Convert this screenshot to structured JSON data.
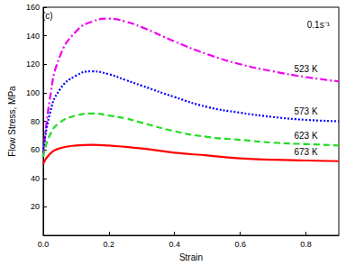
{
  "chart_data": {
    "type": "line",
    "x_label": "Strain",
    "y_label": "Flow Stress, MPa",
    "annotations": [
      "(c)",
      "0.1s⁻¹"
    ],
    "x": [
      0,
      0.02,
      0.05,
      0.1,
      0.15,
      0.2,
      0.25,
      0.3,
      0.4,
      0.5,
      0.6,
      0.7,
      0.8,
      0.9
    ],
    "series": [
      {
        "name": "523 K",
        "color": "#ee00ee",
        "line_style": "dashdot",
        "values": [
          55,
          95,
          125,
          143,
          150,
          152,
          150,
          146,
          136,
          127,
          120,
          115,
          111,
          108
        ]
      },
      {
        "name": "573 K",
        "color": "#0000ff",
        "line_style": "dotted",
        "values": [
          58,
          85,
          102,
          112,
          115,
          113,
          109,
          105,
          97,
          90,
          86,
          83,
          81,
          80
        ]
      },
      {
        "name": "623 K",
        "color": "#22dd22",
        "line_style": "dashed",
        "values": [
          55,
          70,
          79,
          84,
          85.5,
          84,
          82,
          79,
          73,
          69,
          67,
          65,
          64,
          63
        ]
      },
      {
        "name": "673 K",
        "color": "#ff0000",
        "line_style": "solid",
        "values": [
          50,
          57,
          61,
          63,
          63.5,
          63,
          62,
          61,
          58,
          56,
          54,
          53,
          52.5,
          52
        ]
      }
    ],
    "xlim": [
      0,
      0.9
    ],
    "xticks": [
      {
        "value": 0,
        "label": "0.0"
      },
      0.2,
      0.4,
      0.6,
      0.8
    ],
    "ylim": [
      0,
      160
    ],
    "yticks": [
      20,
      40,
      60,
      80,
      100,
      120,
      140,
      160
    ],
    "grid": false
  }
}
